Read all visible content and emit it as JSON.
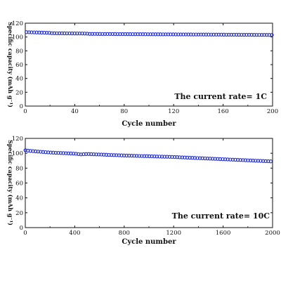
{
  "chart_data": [
    {
      "type": "scatter",
      "ylabel": "Specific capacity (mAh g⁻¹)",
      "xlabel": "Cycle number",
      "annotation": "The current rate= 1C",
      "xlim": [
        0,
        200
      ],
      "ylim": [
        0,
        120
      ],
      "xticks": [
        "0",
        "40",
        "80",
        "120",
        "160",
        "200"
      ],
      "yticks": [
        "0",
        "20",
        "40",
        "60",
        "80",
        "100",
        "120"
      ],
      "marker_color": "#1f2bd6",
      "marker": "open-circle",
      "series": [
        {
          "x": [
            1,
            20,
            21,
            50,
            51,
            52,
            100,
            150,
            200
          ],
          "y": [
            107,
            106,
            105.5,
            105,
            103.5,
            104.5,
            104,
            103.5,
            103
          ]
        }
      ]
    },
    {
      "type": "scatter",
      "ylabel": "Specific capacity (mAh g⁻¹)",
      "xlabel": "Cycle number",
      "annotation": "The current rate= 10C",
      "xlim": [
        0,
        2000
      ],
      "ylim": [
        0,
        120
      ],
      "xticks": [
        "0",
        "400",
        "800",
        "1200",
        "1600",
        "2000"
      ],
      "yticks": [
        "0",
        "20",
        "40",
        "60",
        "80",
        "100",
        "120"
      ],
      "marker_color": "#1f2bd6",
      "marker": "open-circle",
      "series": [
        {
          "x": [
            1,
            50,
            200,
            400,
            450,
            500,
            800,
            1200,
            1600,
            2000
          ],
          "y": [
            104,
            103,
            101,
            99.5,
            98.5,
            99,
            97,
            95,
            92,
            89
          ]
        }
      ]
    }
  ]
}
